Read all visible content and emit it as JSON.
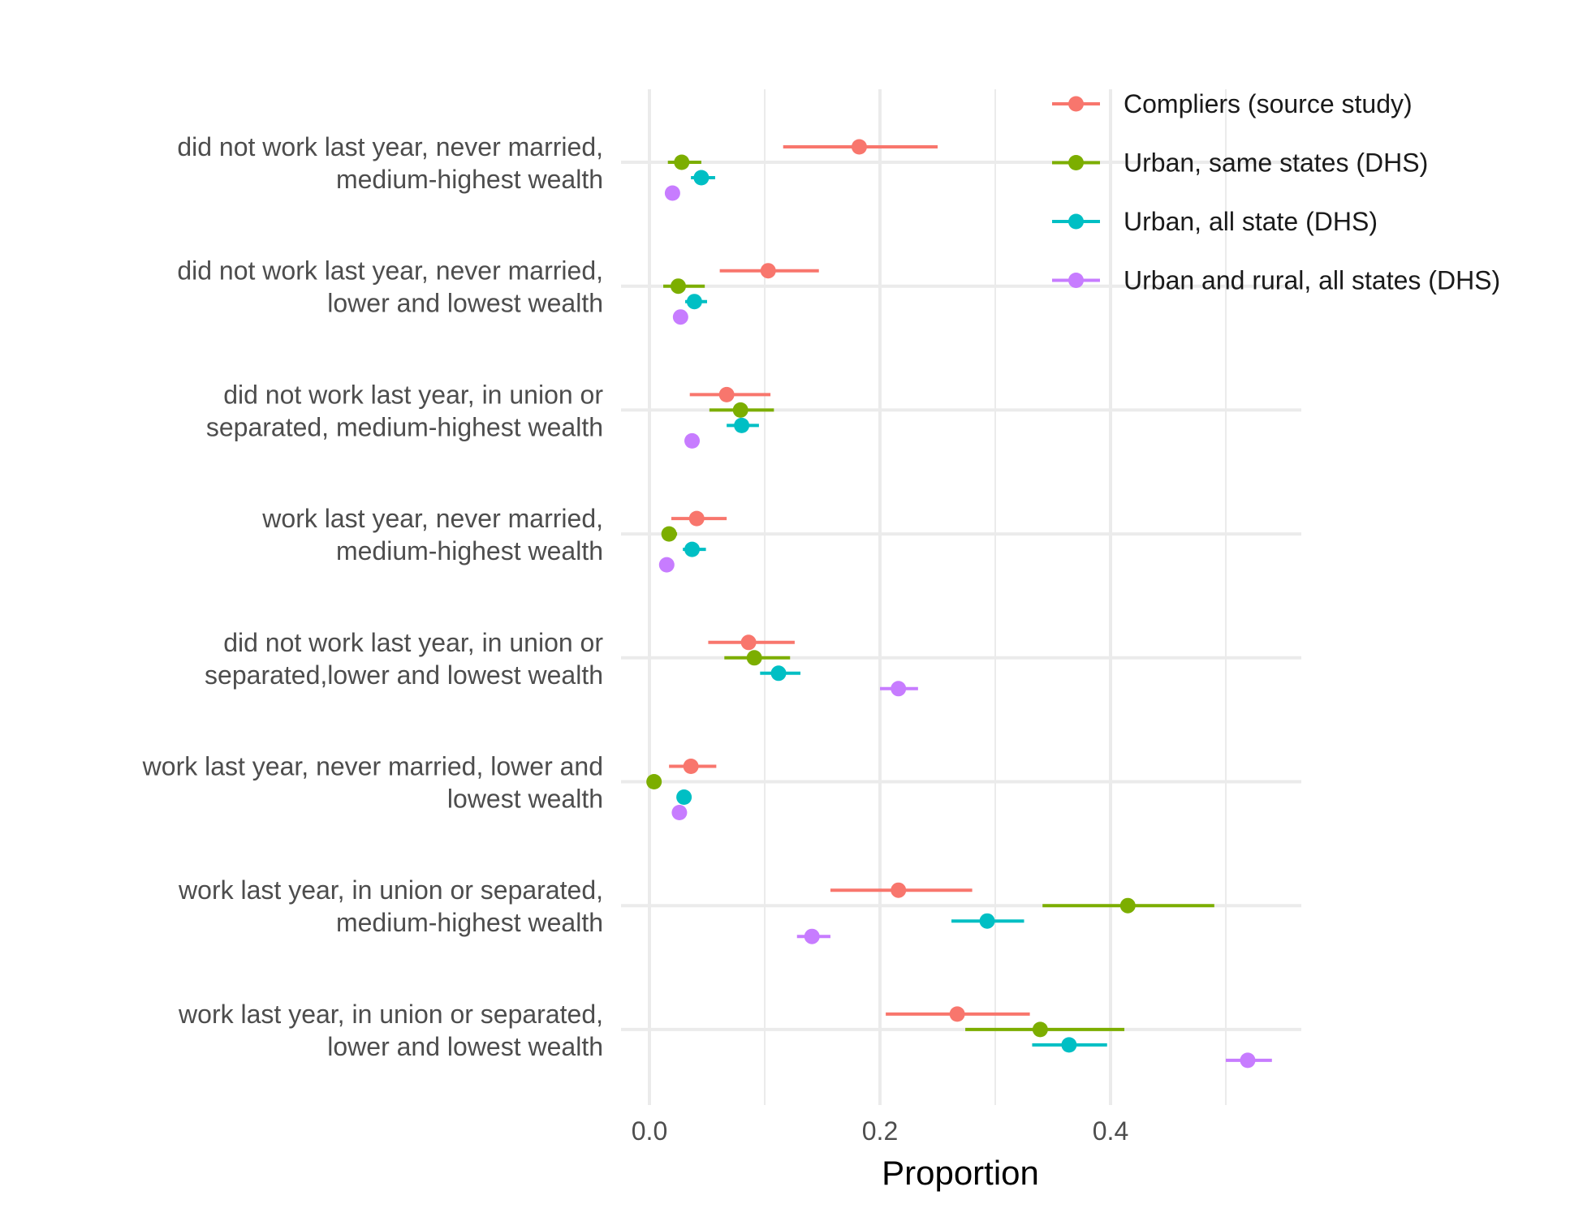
{
  "chart_data": {
    "type": "scatter",
    "subtype": "dot-and-interval",
    "title": "",
    "xlabel": "Proportion",
    "ylabel": "",
    "xlim": [
      -0.025,
      0.56
    ],
    "x_ticks": [
      0.0,
      0.2,
      0.4
    ],
    "x_tick_labels": [
      "0.0",
      "0.2",
      "0.4"
    ],
    "x_minor_ticks": [
      0.1,
      0.3,
      0.5
    ],
    "grid": true,
    "legend_position": "top-right",
    "categories": [
      [
        "did not work last year, never married,",
        "medium-highest wealth"
      ],
      [
        "did not work last year, never married,",
        "lower and lowest wealth"
      ],
      [
        "did not work last year, in union or",
        "separated, medium-highest wealth"
      ],
      [
        "work last year, never married,",
        "medium-highest wealth"
      ],
      [
        "did not work last year, in union or",
        "separated,lower and lowest wealth"
      ],
      [
        "work last year, never married, lower and",
        "lowest wealth"
      ],
      [
        "work last year, in union or separated,",
        "medium-highest wealth"
      ],
      [
        "work last year, in union or separated,",
        "lower and lowest wealth"
      ]
    ],
    "series": [
      {
        "name": "Compliers (source study)",
        "color": "#F8766D",
        "values": [
          0.182,
          0.103,
          0.067,
          0.041,
          0.086,
          0.036,
          0.216,
          0.267
        ],
        "lower": [
          0.116,
          0.061,
          0.035,
          0.019,
          0.051,
          0.017,
          0.157,
          0.205
        ],
        "upper": [
          0.25,
          0.147,
          0.105,
          0.067,
          0.126,
          0.058,
          0.28,
          0.33
        ]
      },
      {
        "name": "Urban, same states (DHS)",
        "color": "#7CAE00",
        "values": [
          0.028,
          0.025,
          0.079,
          0.017,
          0.091,
          0.004,
          0.415,
          0.339
        ],
        "lower": [
          0.016,
          0.012,
          0.052,
          0.011,
          0.065,
          0.002,
          0.341,
          0.274
        ],
        "upper": [
          0.045,
          0.048,
          0.108,
          0.024,
          0.122,
          0.006,
          0.49,
          0.412
        ]
      },
      {
        "name": "Urban, all state (DHS)",
        "color": "#00BFC4",
        "values": [
          0.045,
          0.039,
          0.08,
          0.037,
          0.112,
          0.03,
          0.293,
          0.364
        ],
        "lower": [
          0.036,
          0.031,
          0.067,
          0.029,
          0.096,
          0.025,
          0.262,
          0.332
        ],
        "upper": [
          0.057,
          0.05,
          0.095,
          0.049,
          0.131,
          0.036,
          0.325,
          0.397
        ]
      },
      {
        "name": "Urban and rural, all states (DHS)",
        "color": "#C77CFF",
        "values": [
          0.02,
          0.027,
          0.037,
          0.015,
          0.216,
          0.026,
          0.141,
          0.519
        ],
        "lower": [
          0.017,
          0.024,
          0.034,
          0.013,
          0.2,
          0.023,
          0.128,
          0.5
        ],
        "upper": [
          0.023,
          0.03,
          0.041,
          0.018,
          0.233,
          0.029,
          0.157,
          0.54
        ]
      }
    ]
  }
}
